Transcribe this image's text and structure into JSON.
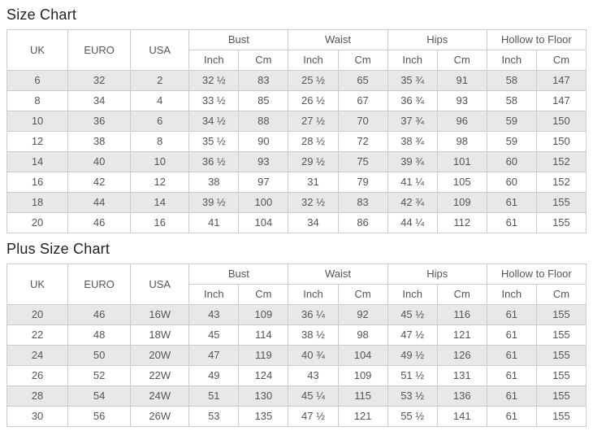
{
  "colors": {
    "row_stripe": "#e8e8e8",
    "border": "#cccccc",
    "cell_text": "#555555",
    "title_text": "#222222",
    "background": "#ffffff"
  },
  "size_chart": {
    "title": "Size Chart",
    "headers": {
      "uk": "UK",
      "euro": "EURO",
      "usa": "USA",
      "groups": [
        "Bust",
        "Waist",
        "Hips",
        "Hollow to Floor"
      ],
      "sub": [
        "Inch",
        "Cm"
      ]
    },
    "rows": [
      [
        "6",
        "32",
        "2",
        "32 ½",
        "83",
        "25 ½",
        "65",
        "35 ¾",
        "91",
        "58",
        "147"
      ],
      [
        "8",
        "34",
        "4",
        "33 ½",
        "85",
        "26 ½",
        "67",
        "36 ¾",
        "93",
        "58",
        "147"
      ],
      [
        "10",
        "36",
        "6",
        "34 ½",
        "88",
        "27 ½",
        "70",
        "37 ¾",
        "96",
        "59",
        "150"
      ],
      [
        "12",
        "38",
        "8",
        "35 ½",
        "90",
        "28 ½",
        "72",
        "38 ¾",
        "98",
        "59",
        "150"
      ],
      [
        "14",
        "40",
        "10",
        "36 ½",
        "93",
        "29 ½",
        "75",
        "39 ¾",
        "101",
        "60",
        "152"
      ],
      [
        "16",
        "42",
        "12",
        "38",
        "97",
        "31",
        "79",
        "41 ¼",
        "105",
        "60",
        "152"
      ],
      [
        "18",
        "44",
        "14",
        "39 ½",
        "100",
        "32 ½",
        "83",
        "42 ¾",
        "109",
        "61",
        "155"
      ],
      [
        "20",
        "46",
        "16",
        "41",
        "104",
        "34",
        "86",
        "44 ¼",
        "112",
        "61",
        "155"
      ]
    ]
  },
  "plus_size_chart": {
    "title": "Plus Size Chart",
    "headers": {
      "uk": "UK",
      "euro": "EURO",
      "usa": "USA",
      "groups": [
        "Bust",
        "Waist",
        "Hips",
        "Hollow to Floor"
      ],
      "sub": [
        "Inch",
        "Cm"
      ]
    },
    "rows": [
      [
        "20",
        "46",
        "16W",
        "43",
        "109",
        "36 ¼",
        "92",
        "45 ½",
        "116",
        "61",
        "155"
      ],
      [
        "22",
        "48",
        "18W",
        "45",
        "114",
        "38 ½",
        "98",
        "47 ½",
        "121",
        "61",
        "155"
      ],
      [
        "24",
        "50",
        "20W",
        "47",
        "119",
        "40 ¾",
        "104",
        "49 ½",
        "126",
        "61",
        "155"
      ],
      [
        "26",
        "52",
        "22W",
        "49",
        "124",
        "43",
        "109",
        "51 ½",
        "131",
        "61",
        "155"
      ],
      [
        "28",
        "54",
        "24W",
        "51",
        "130",
        "45 ¼",
        "115",
        "53 ½",
        "136",
        "61",
        "155"
      ],
      [
        "30",
        "56",
        "26W",
        "53",
        "135",
        "47 ½",
        "121",
        "55 ½",
        "141",
        "61",
        "155"
      ]
    ]
  }
}
